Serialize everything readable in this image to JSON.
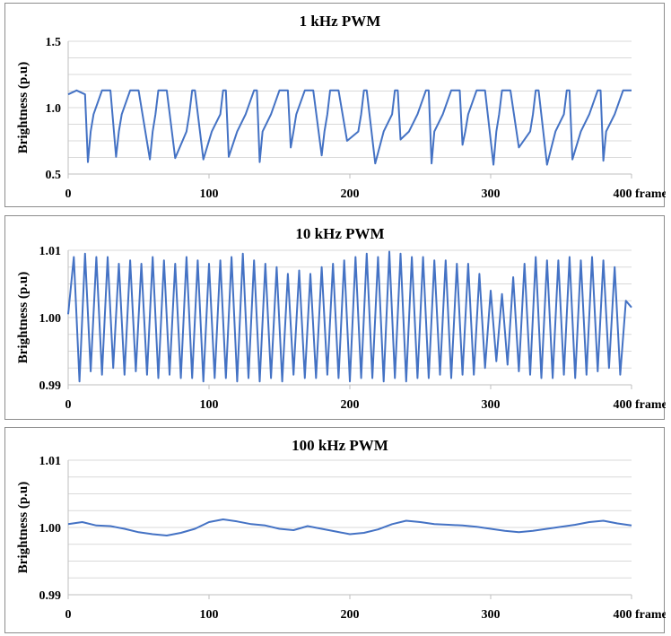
{
  "chart_data": [
    {
      "type": "line",
      "title": "1 kHz PWM",
      "ylabel": "Brightness (p.u)",
      "xlabel": "frame",
      "xlim": [
        0,
        400
      ],
      "ylim": [
        0.5,
        1.5
      ],
      "yticks": [
        "0.5",
        "1.0",
        "1.5"
      ],
      "xticks": [
        "0",
        "100",
        "200",
        "300",
        "400"
      ],
      "grid": true,
      "series": [
        {
          "color": "#4472C4",
          "x": [
            0,
            6,
            12,
            14,
            16,
            18,
            24,
            30,
            34,
            36,
            38,
            44,
            50,
            58,
            60,
            62,
            64,
            70,
            76,
            84,
            86,
            88,
            90,
            96,
            102,
            108,
            110,
            112,
            114,
            120,
            126,
            132,
            134,
            136,
            138,
            144,
            150,
            156,
            158,
            160,
            162,
            168,
            174,
            180,
            182,
            184,
            186,
            192,
            198,
            206,
            208,
            210,
            212,
            218,
            224,
            230,
            232,
            234,
            236,
            242,
            248,
            254,
            256,
            258,
            260,
            266,
            272,
            278,
            280,
            282,
            284,
            290,
            296,
            302,
            304,
            306,
            308,
            314,
            320,
            328,
            330,
            332,
            334,
            340,
            346,
            352,
            354,
            356,
            358,
            364,
            370,
            376,
            378,
            380,
            382,
            388,
            394,
            400
          ],
          "y": [
            1.1,
            1.13,
            1.1,
            0.59,
            0.82,
            0.95,
            1.13,
            1.13,
            0.63,
            0.82,
            0.95,
            1.13,
            1.13,
            0.61,
            0.82,
            0.95,
            1.13,
            1.13,
            0.62,
            0.82,
            0.95,
            1.13,
            1.13,
            0.61,
            0.82,
            0.95,
            1.13,
            1.13,
            0.63,
            0.82,
            0.95,
            1.13,
            1.13,
            0.59,
            0.82,
            0.95,
            1.13,
            1.13,
            0.7,
            0.82,
            0.95,
            1.13,
            1.13,
            0.64,
            0.82,
            0.95,
            1.13,
            1.13,
            0.75,
            0.82,
            0.95,
            1.13,
            1.13,
            0.58,
            0.82,
            0.95,
            1.13,
            1.13,
            0.76,
            0.82,
            0.95,
            1.13,
            1.13,
            0.58,
            0.82,
            0.95,
            1.13,
            1.13,
            0.72,
            0.82,
            0.95,
            1.13,
            1.13,
            0.57,
            0.82,
            0.95,
            1.13,
            1.13,
            0.7,
            0.82,
            0.95,
            1.13,
            1.13,
            0.57,
            0.82,
            0.95,
            1.13,
            1.13,
            0.61,
            0.82,
            0.95,
            1.13,
            1.13,
            0.6,
            0.82,
            0.95,
            1.13,
            1.13
          ]
        }
      ]
    },
    {
      "type": "line",
      "title": "10 kHz PWM",
      "ylabel": "Brightness (p.u)",
      "xlabel": "frame",
      "xlim": [
        0,
        400
      ],
      "ylim": [
        0.99,
        1.01
      ],
      "yticks": [
        "0.99",
        "1.00",
        "1.01"
      ],
      "xticks": [
        "0",
        "100",
        "200",
        "300",
        "400"
      ],
      "grid": true,
      "series": [
        {
          "color": "#4472C4",
          "x": [
            0,
            4,
            8,
            12,
            16,
            20,
            24,
            28,
            32,
            36,
            40,
            44,
            48,
            52,
            56,
            60,
            64,
            68,
            72,
            76,
            80,
            84,
            88,
            92,
            96,
            100,
            104,
            108,
            112,
            116,
            120,
            124,
            128,
            132,
            136,
            140,
            144,
            148,
            152,
            156,
            160,
            164,
            168,
            172,
            176,
            180,
            184,
            188,
            192,
            196,
            200,
            204,
            208,
            212,
            216,
            220,
            224,
            228,
            232,
            236,
            240,
            244,
            248,
            252,
            256,
            260,
            264,
            268,
            272,
            276,
            280,
            284,
            288,
            292,
            296,
            300,
            304,
            308,
            312,
            316,
            320,
            324,
            328,
            332,
            336,
            340,
            344,
            348,
            352,
            356,
            360,
            364,
            368,
            372,
            376,
            380,
            384,
            388,
            392,
            396,
            400
          ],
          "y": [
            1.0005,
            1.009,
            0.9905,
            1.0095,
            0.992,
            1.009,
            0.9915,
            1.009,
            0.9925,
            1.008,
            0.9915,
            1.0085,
            0.992,
            1.008,
            0.9915,
            1.009,
            0.991,
            1.0085,
            0.9915,
            1.008,
            0.991,
            1.009,
            0.991,
            1.0085,
            0.9905,
            1.008,
            0.991,
            1.0085,
            0.991,
            1.009,
            0.9905,
            1.0095,
            0.991,
            1.0085,
            0.9905,
            1.008,
            0.991,
            1.0075,
            0.9905,
            1.0065,
            0.9915,
            1.007,
            0.991,
            1.0065,
            0.991,
            1.0075,
            0.9915,
            1.008,
            0.991,
            1.0085,
            0.9905,
            1.009,
            0.991,
            1.0095,
            0.991,
            1.009,
            0.9905,
            1.0098,
            0.991,
            1.0095,
            0.9905,
            1.009,
            0.991,
            1.009,
            0.991,
            1.0085,
            0.9915,
            1.0085,
            0.991,
            1.008,
            0.9915,
            1.008,
            0.9915,
            1.0065,
            0.9925,
            1.004,
            0.9935,
            1.0035,
            0.993,
            1.006,
            0.992,
            1.008,
            0.9915,
            1.009,
            0.991,
            1.0085,
            0.991,
            1.0085,
            0.9915,
            1.009,
            0.991,
            1.0085,
            0.9915,
            1.009,
            0.992,
            1.0085,
            0.9925,
            1.0075,
            0.9915,
            1.0025,
            1.0015
          ]
        }
      ]
    },
    {
      "type": "line",
      "title": "100 kHz PWM",
      "ylabel": "Brightness (p.u)",
      "xlabel": "frame",
      "xlim": [
        0,
        400
      ],
      "ylim": [
        0.99,
        1.01
      ],
      "yticks": [
        "0.99",
        "1.00",
        "1.01"
      ],
      "xticks": [
        "0",
        "100",
        "200",
        "300",
        "400"
      ],
      "grid": true,
      "series": [
        {
          "color": "#4472C4",
          "x": [
            0,
            10,
            20,
            30,
            40,
            50,
            60,
            70,
            80,
            90,
            100,
            110,
            120,
            130,
            140,
            150,
            160,
            170,
            180,
            190,
            200,
            210,
            220,
            230,
            240,
            250,
            260,
            270,
            280,
            290,
            300,
            310,
            320,
            330,
            340,
            350,
            360,
            370,
            380,
            390,
            400
          ],
          "y": [
            1.0005,
            1.0008,
            1.0003,
            1.0002,
            0.9998,
            0.9993,
            0.999,
            0.9988,
            0.9992,
            0.9998,
            1.0008,
            1.0012,
            1.0009,
            1.0005,
            1.0003,
            0.9998,
            0.9996,
            1.0002,
            0.9998,
            0.9994,
            0.999,
            0.9992,
            0.9997,
            1.0005,
            1.001,
            1.0008,
            1.0005,
            1.0004,
            1.0003,
            1.0001,
            0.9998,
            0.9995,
            0.9993,
            0.9995,
            0.9998,
            1.0001,
            1.0004,
            1.0008,
            1.001,
            1.0006,
            1.0003
          ]
        }
      ]
    }
  ]
}
